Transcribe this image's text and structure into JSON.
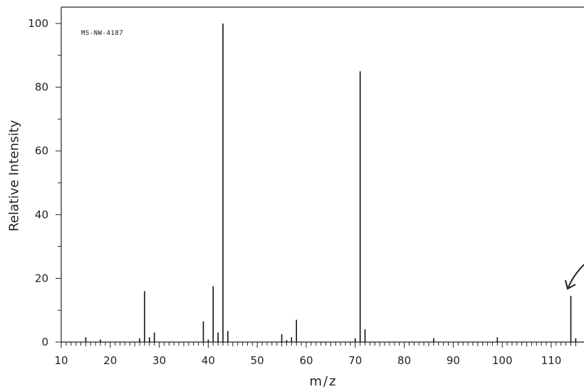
{
  "chart_data": {
    "type": "bar",
    "annotation": "MS-NW-4187",
    "xlabel": "m/z",
    "ylabel": "Relative Intensity",
    "xlim": [
      10,
      115
    ],
    "ylim": [
      0,
      105
    ],
    "x_ticks": [
      10,
      20,
      30,
      40,
      50,
      60,
      70,
      80,
      90,
      100,
      110
    ],
    "y_ticks": [
      0,
      20,
      40,
      60,
      80,
      100
    ],
    "grid": false,
    "peaks": [
      {
        "x": 15,
        "y": 1.5
      },
      {
        "x": 18,
        "y": 0.8
      },
      {
        "x": 26,
        "y": 1.2
      },
      {
        "x": 27,
        "y": 16
      },
      {
        "x": 28,
        "y": 1.5
      },
      {
        "x": 29,
        "y": 3
      },
      {
        "x": 39,
        "y": 6.5
      },
      {
        "x": 40,
        "y": 0.8
      },
      {
        "x": 41,
        "y": 17.5
      },
      {
        "x": 42,
        "y": 3
      },
      {
        "x": 43,
        "y": 100
      },
      {
        "x": 44,
        "y": 3.5
      },
      {
        "x": 55,
        "y": 2.5
      },
      {
        "x": 56,
        "y": 0.6
      },
      {
        "x": 57,
        "y": 1.5
      },
      {
        "x": 58,
        "y": 7
      },
      {
        "x": 70,
        "y": 1.2
      },
      {
        "x": 71,
        "y": 85
      },
      {
        "x": 72,
        "y": 4
      },
      {
        "x": 86,
        "y": 1.2
      },
      {
        "x": 99,
        "y": 1.5
      },
      {
        "x": 114,
        "y": 14.5
      },
      {
        "x": 115,
        "y": 1.2
      }
    ]
  }
}
